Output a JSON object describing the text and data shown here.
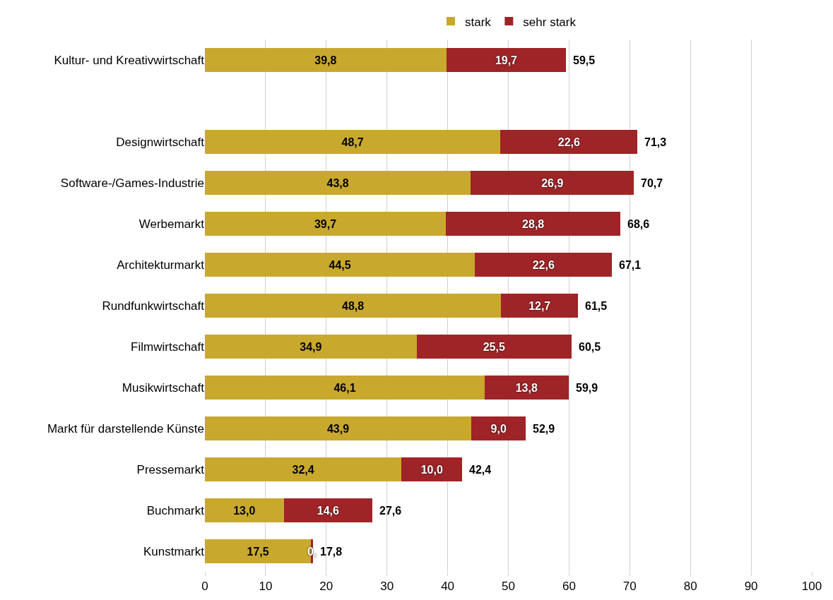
{
  "chart_data": {
    "type": "bar",
    "orientation": "horizontal",
    "stacked": true,
    "categories": [
      "Kultur- und Kreativwirtschaft",
      null,
      "Designwirtschaft",
      "Software-/Games-Industrie",
      "Werbemarkt",
      "Architekturmarkt",
      "Rundfunkwirtschaft",
      "Filmwirtschaft",
      "Musikwirtschaft",
      "Markt für darstellende Künste",
      "Pressemarkt",
      "Buchmarkt",
      "Kunstmarkt"
    ],
    "series": [
      {
        "name": "stark",
        "color": "#c9a82e",
        "values": [
          39.8,
          null,
          48.7,
          43.8,
          39.7,
          44.5,
          48.8,
          34.9,
          46.1,
          43.9,
          32.4,
          13.0,
          17.5
        ],
        "value_labels": [
          "39,8",
          null,
          "48,7",
          "43,8",
          "39,7",
          "44,5",
          "48,8",
          "34,9",
          "46,1",
          "43,9",
          "32,4",
          "13,0",
          "17,5"
        ]
      },
      {
        "name": "sehr stark",
        "color": "#9e2427",
        "values": [
          19.7,
          null,
          22.6,
          26.9,
          28.8,
          22.6,
          12.7,
          25.5,
          13.8,
          9.0,
          10.0,
          14.6,
          0.3
        ],
        "value_labels": [
          "19,7",
          null,
          "22,6",
          "26,9",
          "28,8",
          "22,6",
          "12,7",
          "25,5",
          "13,8",
          "9,0",
          "10,0",
          "14,6",
          "0,"
        ]
      }
    ],
    "totals": [
      "59,5",
      null,
      "71,3",
      "70,7",
      "68,6",
      "67,1",
      "61,5",
      "60,5",
      "59,9",
      "52,9",
      "42,4",
      "27,6",
      "17,8"
    ],
    "xlim": [
      0,
      100
    ],
    "xticks": [
      0,
      10,
      20,
      30,
      40,
      50,
      60,
      70,
      80,
      90,
      100
    ],
    "grid": "x",
    "legend": "top"
  }
}
